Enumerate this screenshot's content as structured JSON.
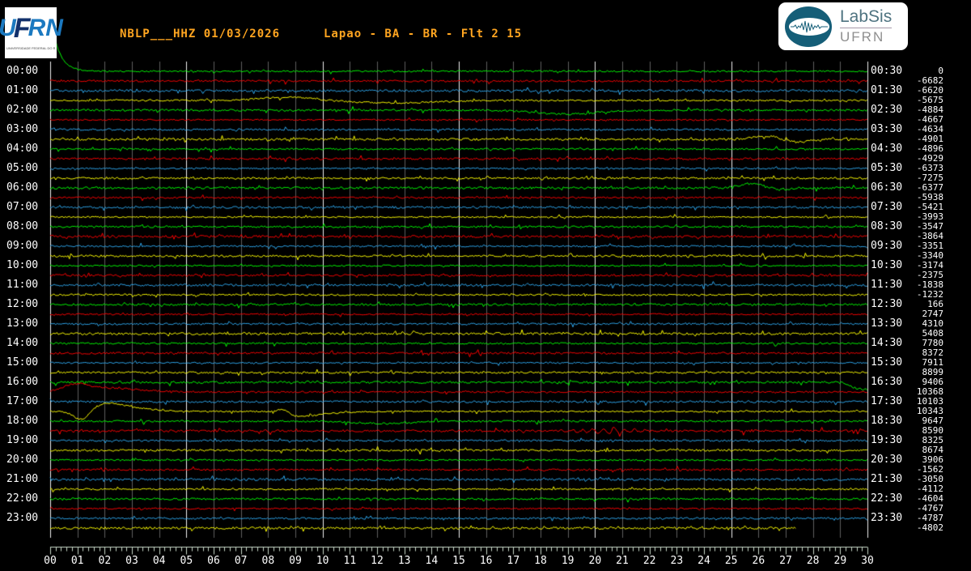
{
  "header": {
    "title_station": "NBLP___HHZ 01/03/2026",
    "title_location": "Lapao - BA - BR - Flt 2 15",
    "ufrn_logo": {
      "letters": [
        "U",
        "F",
        "R",
        "N"
      ],
      "subtext": "UNIVERSIDADE FEDERAL DO RIO GRANDE DO NORTE"
    },
    "labsis_logo": {
      "name": "LabSis",
      "org": "UFRN"
    }
  },
  "colors": {
    "background": "#000000",
    "title": "#ffa520",
    "label_text": "#ffffff",
    "grid_minor": "#5e5e5e",
    "grid_major": "#efefef",
    "ruler": "#c8d8c8",
    "trace_cycle": [
      "#00ff00",
      "#ff0000",
      "#2ea8ef",
      "#ffff00"
    ]
  },
  "chart_data": {
    "type": "line",
    "subtype": "helicorder",
    "title": "NBLP___HHZ 01/03/2026  Lapao - BA - BR - Flt 2 15",
    "x_axis": {
      "unit": "minutes per line",
      "min": 0,
      "max": 30,
      "tick_labels": [
        "00",
        "01",
        "02",
        "03",
        "04",
        "05",
        "06",
        "07",
        "08",
        "09",
        "10",
        "11",
        "12",
        "13",
        "14",
        "15",
        "16",
        "17",
        "18",
        "19",
        "20",
        "21",
        "22",
        "23",
        "24",
        "25",
        "26",
        "27",
        "28",
        "29",
        "30"
      ],
      "minor_ticks_per_minute": 5,
      "grid": "vertical gridlines every minute, brighter line every 5 minutes"
    },
    "rows_per_hour": 2,
    "minutes_per_row": 30,
    "left_time_labels": [
      "00:00",
      "01:00",
      "02:00",
      "03:00",
      "04:00",
      "05:00",
      "06:00",
      "07:00",
      "08:00",
      "09:00",
      "10:00",
      "11:00",
      "12:00",
      "13:00",
      "14:00",
      "15:00",
      "16:00",
      "17:00",
      "18:00",
      "19:00",
      "20:00",
      "21:00",
      "22:00",
      "23:00"
    ],
    "right_time_labels": [
      "00:30",
      "01:30",
      "02:30",
      "03:30",
      "04:30",
      "05:30",
      "06:30",
      "07:30",
      "08:30",
      "09:30",
      "10:30",
      "11:30",
      "12:30",
      "13:30",
      "14:30",
      "15:30",
      "16:30",
      "17:30",
      "18:30",
      "19:30",
      "20:30",
      "21:30",
      "22:30",
      "23:30"
    ],
    "row_offset_counts": [
      0,
      -6682,
      -6620,
      -5675,
      -4884,
      -4667,
      -4634,
      -4901,
      -4896,
      -4929,
      -6373,
      -7275,
      -6377,
      -5938,
      -5421,
      -3993,
      -3547,
      -3864,
      -3351,
      -3340,
      -3174,
      -2375,
      -1838,
      -1232,
      166,
      2747,
      4310,
      5408,
      7780,
      8372,
      7911,
      8899,
      9406,
      10368,
      10103,
      10343,
      9647,
      8590,
      8325,
      8674,
      3906,
      -1562,
      -3050,
      -4112,
      -4604,
      -4767,
      -4787,
      -4802
    ],
    "last_row_end_minute": 27.4,
    "events": [
      {
        "row": 0,
        "type": "decay",
        "amp": 73,
        "t0": 0,
        "tau": 0.3
      },
      {
        "row": 3,
        "type": "gauss",
        "pulses": [
          [
            4,
            8.7,
            1.0
          ],
          [
            -3,
            12.6,
            1.6
          ]
        ]
      },
      {
        "row": 4,
        "type": "gauss",
        "pulses": [
          [
            -5,
            18.9,
            1.1
          ]
        ]
      },
      {
        "row": 7,
        "type": "gauss",
        "pulses": [
          [
            5,
            26.4,
            0.5
          ],
          [
            -4,
            27.3,
            0.55
          ]
        ]
      },
      {
        "row": 12,
        "type": "gauss",
        "pulses": [
          [
            6,
            25.8,
            0.45
          ],
          [
            -2,
            26.6,
            0.5
          ]
        ]
      },
      {
        "row": 32,
        "type": "step",
        "amp": -9,
        "t0": 29.4,
        "w": 0.12
      },
      {
        "row": 33,
        "type": "gauss",
        "pulses": [
          [
            8,
            0.9,
            0.45
          ],
          [
            4,
            1.8,
            0.8
          ],
          [
            2,
            3.0,
            1.0
          ]
        ]
      },
      {
        "row": 35,
        "type": "gauss",
        "pulses": [
          [
            -11,
            1.15,
            0.28
          ],
          [
            8,
            2.1,
            0.5
          ],
          [
            4,
            3.0,
            0.8
          ],
          [
            5,
            8.55,
            0.18
          ],
          [
            -5,
            9.2,
            0.5
          ],
          [
            -2,
            10.2,
            0.8
          ]
        ]
      },
      {
        "row": 36,
        "type": "gauss",
        "pulses": [
          [
            -3,
            12.3,
            1.0
          ]
        ]
      },
      {
        "row": 37,
        "type": "osc",
        "amp": 4,
        "center": 20.6,
        "span": 1.3,
        "freq": 2.6
      }
    ]
  }
}
